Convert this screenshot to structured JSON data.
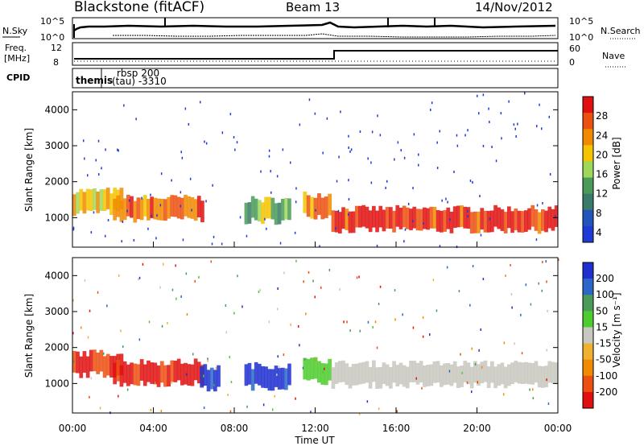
{
  "header": {
    "station": "Blackstone (fitACF)",
    "beam": "Beam 13",
    "date": "14/Nov/2012"
  },
  "summary_panels": {
    "nsky": {
      "label": "N.Sky",
      "ticks": [
        "10^5",
        "10^0"
      ]
    },
    "nsearch": {
      "label": "N.Search",
      "ticks": [
        "10^5",
        "10^0"
      ]
    },
    "freq": {
      "label_line1": "Freq.",
      "label_line2": "[MHz]",
      "ticks": [
        "12",
        "8"
      ]
    },
    "nave": {
      "label": "Nave",
      "ticks": [
        "60",
        "0"
      ]
    },
    "cpid": {
      "label": "CPID",
      "entries": [
        "themis",
        "rbsp 200",
        "(tau) -3310"
      ]
    }
  },
  "colors": {
    "power_scale": [
      "#1f3bd6",
      "#2255bb",
      "#3a7a6a",
      "#4a9a5a",
      "#9ed85a",
      "#f5c400",
      "#f08a00",
      "#ec5010",
      "#e01010"
    ],
    "velocity_scale": [
      "#1f2fd0",
      "#2c66c8",
      "#4a9a5a",
      "#4ecb2e",
      "#c8c8c0",
      "#f0b030",
      "#f08a00",
      "#ec5010",
      "#e01010"
    ],
    "axis": "#000000"
  },
  "chart_data": [
    {
      "type": "heatmap",
      "title": "",
      "xlabel": "Time UT",
      "ylabel": "Slant Range [km]",
      "x_ticks": [
        "00:00",
        "04:00",
        "08:00",
        "12:00",
        "16:00",
        "20:00",
        "00:00"
      ],
      "y_ticks": [
        "1000",
        "2000",
        "3000",
        "4000"
      ],
      "xlim_hours": [
        0,
        24
      ],
      "ylim_km": [
        180,
        4500
      ],
      "colorbar": {
        "label": "Power [dB]",
        "ticks": [
          "28",
          "24",
          "20",
          "16",
          "12",
          "8",
          "4"
        ],
        "range": [
          0,
          30
        ]
      },
      "echo_bands": [
        {
          "t_start": 0.0,
          "t_end": 2.5,
          "range_center_km": 1400,
          "power_db": 18
        },
        {
          "t_start": 2.0,
          "t_end": 6.5,
          "range_center_km": 1200,
          "power_db": 24
        },
        {
          "t_start": 8.5,
          "t_end": 10.8,
          "range_center_km": 1150,
          "power_db": 14
        },
        {
          "t_start": 11.4,
          "t_end": 12.8,
          "range_center_km": 1300,
          "power_db": 20
        },
        {
          "t_start": 12.8,
          "t_end": 24.0,
          "range_center_km": 900,
          "power_db": 28
        }
      ]
    },
    {
      "type": "heatmap",
      "title": "",
      "xlabel": "Time UT",
      "ylabel": "Slant Range [km]",
      "x_ticks": [
        "00:00",
        "04:00",
        "08:00",
        "12:00",
        "16:00",
        "20:00",
        "00:00"
      ],
      "y_ticks": [
        "1000",
        "2000",
        "3000",
        "4000"
      ],
      "xlim_hours": [
        0,
        24
      ],
      "ylim_km": [
        180,
        4500
      ],
      "colorbar": {
        "label": "Velocity [m s⁻¹]",
        "ticks": [
          "200",
          "100",
          "50",
          "15",
          "-15",
          "-50",
          "-100",
          "-200"
        ],
        "range": [
          -250,
          250
        ]
      },
      "echo_bands": [
        {
          "t_start": 0.0,
          "t_end": 2.5,
          "range_center_km": 1500,
          "velocity_ms": -200
        },
        {
          "t_start": 2.0,
          "t_end": 6.5,
          "range_center_km": 1250,
          "velocity_ms": -200
        },
        {
          "t_start": 6.3,
          "t_end": 7.3,
          "range_center_km": 1100,
          "velocity_ms": 200
        },
        {
          "t_start": 8.5,
          "t_end": 10.8,
          "range_center_km": 1150,
          "velocity_ms": 200
        },
        {
          "t_start": 11.4,
          "t_end": 12.8,
          "range_center_km": 1300,
          "velocity_ms": 50
        },
        {
          "t_start": 12.8,
          "t_end": 24.0,
          "range_center_km": 1200,
          "velocity_ms": 0
        }
      ]
    }
  ]
}
